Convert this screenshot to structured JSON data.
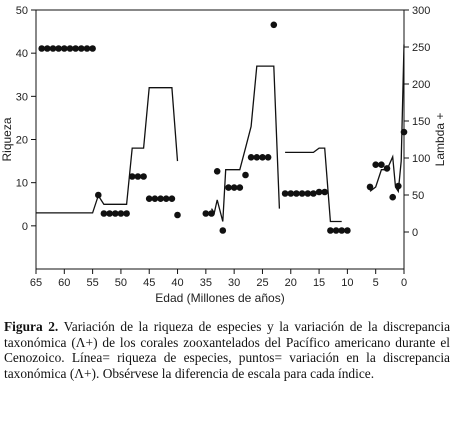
{
  "chart_data": {
    "type": "line",
    "xlabel": "Edad (Millones de años)",
    "ylabel_left": "Riqueza",
    "ylabel_right": "Lambda +",
    "x_reversed": true,
    "xlim": [
      65,
      0
    ],
    "ylim_left": [
      -10,
      50
    ],
    "ylim_right": [
      -50,
      300
    ],
    "x_ticks": [
      65,
      60,
      55,
      50,
      45,
      40,
      35,
      30,
      25,
      20,
      15,
      10,
      5,
      0
    ],
    "y_ticks_left": [
      0,
      10,
      20,
      30,
      40,
      50
    ],
    "y_ticks_right": [
      0,
      50,
      100,
      150,
      200,
      250,
      300
    ],
    "grid": false,
    "series": [
      {
        "style": "line",
        "axis": "left",
        "segments": [
          [
            [
              65,
              3
            ],
            [
              55,
              3
            ],
            [
              54,
              7
            ],
            [
              53,
              5
            ],
            [
              49,
              5
            ],
            [
              48,
              18
            ],
            [
              46,
              18
            ],
            [
              45,
              32
            ],
            [
              41,
              32
            ],
            [
              40,
              15
            ]
          ],
          [
            [
              34,
              4
            ],
            [
              33.5,
              3
            ],
            [
              33,
              6
            ],
            [
              32,
              1
            ],
            [
              31.5,
              13
            ],
            [
              29,
              13
            ],
            [
              28,
              18
            ],
            [
              27,
              23
            ],
            [
              26,
              37
            ],
            [
              23,
              37
            ],
            [
              22,
              4
            ]
          ],
          [
            [
              21,
              17
            ],
            [
              16,
              17
            ],
            [
              15,
              18
            ],
            [
              14,
              18
            ],
            [
              13,
              1
            ],
            [
              11,
              1
            ]
          ],
          [
            [
              6,
              8
            ],
            [
              5,
              9
            ],
            [
              4,
              13
            ],
            [
              3,
              13
            ],
            [
              2,
              16
            ],
            [
              1.5,
              9
            ],
            [
              1,
              8
            ],
            [
              0.5,
              15
            ],
            [
              0,
              42
            ]
          ]
        ]
      },
      {
        "style": "points",
        "axis": "right",
        "points": [
          [
            64,
            248
          ],
          [
            63,
            248
          ],
          [
            62,
            248
          ],
          [
            61,
            248
          ],
          [
            60,
            248
          ],
          [
            59,
            248
          ],
          [
            58,
            248
          ],
          [
            57,
            248
          ],
          [
            56,
            248
          ],
          [
            55,
            248
          ],
          [
            54,
            50
          ],
          [
            53,
            25
          ],
          [
            52,
            25
          ],
          [
            51,
            25
          ],
          [
            50,
            25
          ],
          [
            49,
            25
          ],
          [
            48,
            75
          ],
          [
            47,
            75
          ],
          [
            46,
            75
          ],
          [
            45,
            45
          ],
          [
            44,
            45
          ],
          [
            43,
            45
          ],
          [
            42,
            45
          ],
          [
            41,
            45
          ],
          [
            40,
            23
          ],
          [
            35,
            25
          ],
          [
            34,
            25
          ],
          [
            33,
            82
          ],
          [
            32,
            2
          ],
          [
            31,
            60
          ],
          [
            30,
            60
          ],
          [
            29,
            60
          ],
          [
            28,
            77
          ],
          [
            27,
            101
          ],
          [
            26,
            101
          ],
          [
            25,
            101
          ],
          [
            24,
            101
          ],
          [
            23,
            280
          ],
          [
            21,
            52
          ],
          [
            20,
            52
          ],
          [
            19,
            52
          ],
          [
            18,
            52
          ],
          [
            17,
            52
          ],
          [
            16,
            52
          ],
          [
            15,
            54
          ],
          [
            14,
            54
          ],
          [
            13,
            2
          ],
          [
            12,
            2
          ],
          [
            11,
            2
          ],
          [
            10,
            2
          ],
          [
            6,
            61
          ],
          [
            5,
            91
          ],
          [
            4,
            91
          ],
          [
            3,
            86
          ],
          [
            2,
            47
          ],
          [
            1,
            62
          ],
          [
            0,
            135
          ]
        ]
      }
    ]
  },
  "caption": {
    "label": "Figura 2.",
    "text": "Variación de la riqueza de especies y la variación de la discrepancia taxonómica (Λ+) de los corales zooxantelados del Pacífico americano durante el Cenozoico. Línea= riqueza de especies, puntos= variación en la discrepancia taxonómica (Λ+). Obsérvese la diferencia de escala para cada índice."
  }
}
